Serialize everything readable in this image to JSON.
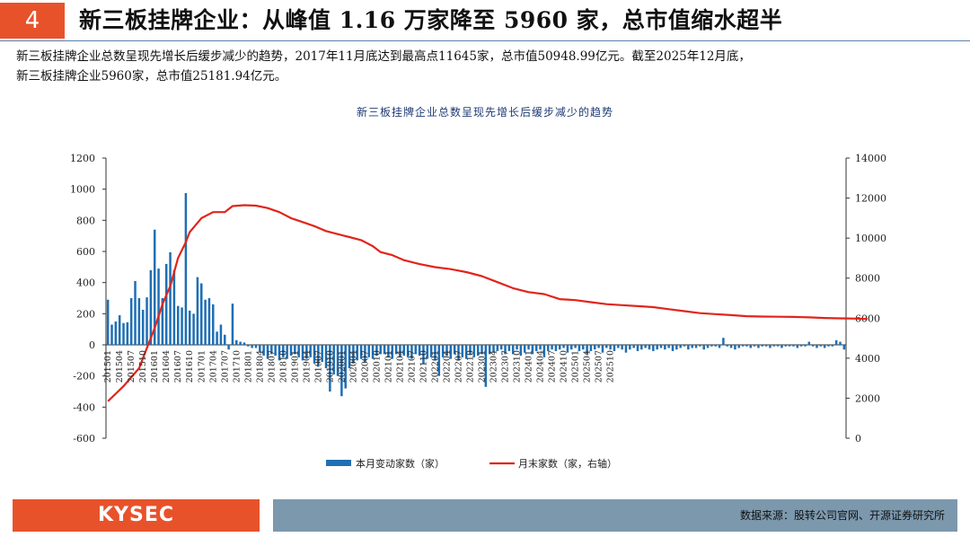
{
  "header": {
    "page_number": "4",
    "title": "新三板挂牌企业：从峰值 1.16 万家降至 5960 家，总市值缩水超半"
  },
  "summary": {
    "line1": "新三板挂牌企业总数呈现先增长后缓步减少的趋势，2017年11月底达到最高点11645家，总市值50948.99亿元。截至2025年12月底，",
    "line2": "新三板挂牌企业5960家，总市值25181.94亿元。"
  },
  "footer": {
    "logo_text": "KYSEC",
    "source": "数据来源：股转公司官网、开源证券研究所"
  },
  "colors": {
    "bar": "#1f6fb4",
    "line": "#e1251b",
    "accent": "#e8522b",
    "footer_bar": "#7c98ad"
  },
  "chart_data": {
    "type": "bar+line",
    "title": "新三板挂牌企业总数呈现先增长后缓步减少的趋势",
    "x_tick_labels": [
      "201501",
      "201504",
      "201507",
      "201510",
      "201601",
      "201604",
      "201607",
      "201610",
      "201701",
      "201704",
      "201707",
      "201710",
      "201801",
      "201804",
      "201807",
      "201810",
      "201901",
      "201904",
      "201907",
      "201910",
      "202001",
      "202004",
      "202007",
      "202010",
      "202101",
      "202104",
      "202107",
      "202110",
      "202201",
      "202204",
      "202207",
      "202210",
      "202301",
      "202304",
      "202307",
      "202310",
      "202401",
      "202404",
      "202407",
      "202410",
      "202501",
      "202504",
      "202507",
      "202510"
    ],
    "y_left": {
      "min": -600,
      "max": 1200,
      "step": 200
    },
    "y_right": {
      "min": 0,
      "max": 14000,
      "step": 2000
    },
    "legend": [
      "本月变动家数（家）",
      "月末家数（家，右轴）"
    ],
    "series": [
      {
        "name": "本月变动家数（家）",
        "type": "bar",
        "axis": "left",
        "values": [
          290,
          130,
          150,
          190,
          140,
          145,
          300,
          410,
          300,
          225,
          305,
          480,
          740,
          490,
          300,
          520,
          595,
          480,
          250,
          240,
          975,
          220,
          200,
          435,
          395,
          290,
          300,
          260,
          85,
          130,
          65,
          -30,
          265,
          30,
          20,
          15,
          -10,
          -20,
          -20,
          -45,
          -70,
          -90,
          -60,
          -70,
          -100,
          -80,
          -90,
          -70,
          -60,
          -80,
          -100,
          -90,
          -80,
          -120,
          -140,
          -110,
          -150,
          -300,
          -190,
          -200,
          -330,
          -280,
          -150,
          -120,
          -100,
          -90,
          -110,
          -80,
          -90,
          -70,
          -60,
          -60,
          -80,
          -90,
          -60,
          -80,
          -70,
          -80,
          -90,
          -60,
          -70,
          -120,
          -90,
          -80,
          -100,
          -200,
          -80,
          -70,
          -90,
          -60,
          -100,
          -80,
          -90,
          -60,
          -80,
          -70,
          -60,
          -270,
          -60,
          -50,
          -40,
          -30,
          -60,
          -40,
          -60,
          -30,
          -70,
          -50,
          -30,
          -60,
          -40,
          -30,
          -80,
          -40,
          -30,
          -40,
          -30,
          -20,
          -50,
          -30,
          -20,
          -40,
          -30,
          -60,
          -40,
          -30,
          -20,
          -50,
          -20,
          -30,
          -40,
          -20,
          -30,
          -50,
          -30,
          -20,
          -40,
          -30,
          -20,
          -30,
          -40,
          -30,
          -20,
          -30,
          -20,
          -40,
          -30,
          -20,
          -10,
          -30,
          -20,
          -20,
          -10,
          -30,
          -20,
          -10,
          -10,
          -20,
          45,
          -10,
          -20,
          -30,
          -20,
          -10,
          -10,
          -20,
          -10,
          -20,
          -10,
          -10,
          -20,
          -10,
          -10,
          -20,
          -10,
          -10,
          -10,
          -20,
          -10,
          -10,
          20,
          -10,
          -20,
          -10,
          -20,
          -10,
          -10,
          30,
          20,
          -30
        ]
      },
      {
        "name": "月末家数（家，右轴）",
        "type": "line",
        "axis": "right",
        "x": [
          0,
          4,
          8,
          10,
          12,
          14,
          16,
          18,
          20,
          21,
          24,
          27,
          30,
          32,
          35,
          38,
          41,
          44,
          47,
          50,
          53,
          56,
          59,
          62,
          65,
          68,
          70,
          73,
          76,
          80,
          84,
          88,
          92,
          96,
          100,
          104,
          108,
          112,
          116,
          120,
          124,
          128,
          132,
          136,
          140,
          144,
          148,
          152,
          156,
          160,
          164,
          168,
          172,
          176,
          180,
          184,
          188,
          190,
          192,
          195
        ],
        "values": [
          1850,
          2600,
          3500,
          4500,
          5500,
          6700,
          7600,
          9000,
          9800,
          10300,
          11000,
          11300,
          11300,
          11600,
          11645,
          11620,
          11500,
          11300,
          11000,
          10800,
          10600,
          10350,
          10200,
          10050,
          9900,
          9600,
          9300,
          9150,
          8900,
          8700,
          8550,
          8450,
          8300,
          8100,
          7800,
          7500,
          7300,
          7200,
          6950,
          6900,
          6800,
          6700,
          6650,
          6600,
          6550,
          6450,
          6350,
          6250,
          6200,
          6150,
          6100,
          6080,
          6070,
          6060,
          6040,
          6010,
          5990,
          5985,
          5975,
          5960
        ]
      }
    ]
  }
}
